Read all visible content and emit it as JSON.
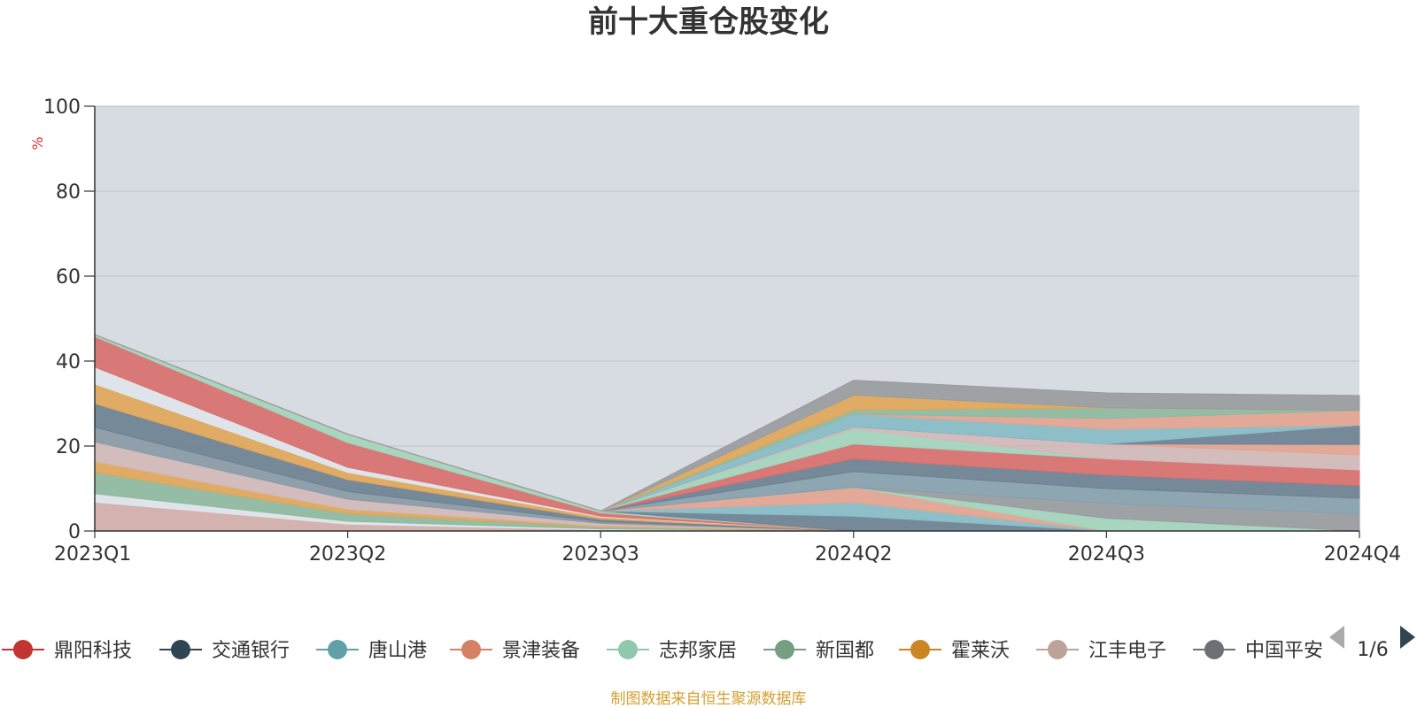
{
  "chart_data": {
    "type": "area",
    "title": "前十大重仓股变化",
    "ylabel": "%",
    "ylim": [
      0,
      100
    ],
    "yticks": [
      "0",
      "20",
      "40",
      "60",
      "80",
      "100"
    ],
    "grid": true,
    "categories": [
      "2023Q1",
      "2023Q2",
      "2023Q3",
      "2024Q2",
      "2024Q3",
      "2024Q4"
    ],
    "series": [
      {
        "name": "江丰电子",
        "color": "#d2aeaa",
        "values": [
          6.8,
          1.6,
          0.3,
          0,
          0,
          0
        ]
      },
      {
        "name": "",
        "color": "#dfe4ea",
        "values": [
          2.0,
          0.7,
          0.2,
          0,
          0,
          0
        ]
      },
      {
        "name": "新国都",
        "color": "#8fb9a0",
        "values": [
          5.0,
          1.8,
          0.4,
          0,
          0,
          0
        ]
      },
      {
        "name": "霍莱沃",
        "color": "#e0a65a",
        "values": [
          2.6,
          1.0,
          0.3,
          0,
          0,
          0
        ]
      },
      {
        "name": "",
        "color": "#d2b9b9",
        "values": [
          4.6,
          2.4,
          0.6,
          0,
          0,
          0
        ]
      },
      {
        "name": "",
        "color": "#8a9aa6",
        "values": [
          3.4,
          1.8,
          0.4,
          0,
          0,
          0
        ]
      },
      {
        "name": "",
        "color": "#6e8192",
        "values": [
          5.6,
          2.8,
          0.6,
          0,
          0,
          0
        ]
      },
      {
        "name": "",
        "color": "#e0a65a",
        "values": [
          4.6,
          1.7,
          0.5,
          0,
          0,
          0
        ]
      },
      {
        "name": "",
        "color": "#dfe4ea",
        "values": [
          4.0,
          1.2,
          0.2,
          0,
          0,
          0
        ]
      },
      {
        "name": "",
        "color": "#d9706e",
        "values": [
          7.2,
          5.8,
          0.8,
          0,
          0,
          0
        ]
      },
      {
        "name": "",
        "color": "#a3d4bc",
        "values": [
          0.4,
          2.0,
          0.4,
          0,
          0,
          0
        ]
      },
      {
        "name": "交通银行",
        "color": "#6e8192",
        "values": [
          0,
          0,
          0,
          3.5,
          0,
          0
        ]
      },
      {
        "name": "唐山港",
        "color": "#88bcc7",
        "values": [
          0,
          0,
          0,
          3.2,
          0,
          0
        ]
      },
      {
        "name": "景津装备",
        "color": "#e3a491",
        "values": [
          0,
          0,
          0,
          3.6,
          0,
          0
        ]
      },
      {
        "name": "志邦家居",
        "color": "#a3d4bc",
        "values": [
          0,
          0,
          0,
          0,
          3.0,
          0
        ]
      },
      {
        "name": "",
        "color": "#9a9c9e",
        "values": [
          0,
          0,
          0,
          0,
          3.5,
          4.0
        ]
      },
      {
        "name": "",
        "color": "#88a0ae",
        "values": [
          0,
          0,
          0,
          3.7,
          3.5,
          3.7
        ]
      },
      {
        "name": "",
        "color": "#6e8192",
        "values": [
          0,
          0,
          0,
          3.0,
          3.2,
          3.0
        ]
      },
      {
        "name": "鼎阳科技",
        "color": "#d9706e",
        "values": [
          0,
          0,
          0,
          3.5,
          3.8,
          3.7
        ]
      },
      {
        "name": "",
        "color": "#a3d4bc",
        "values": [
          0,
          0,
          0,
          3.5,
          0,
          0
        ]
      },
      {
        "name": "",
        "color": "#d2b9b9",
        "values": [
          0,
          0,
          0,
          0.5,
          3.5,
          3.5
        ]
      },
      {
        "name": "",
        "color": "#e3a491",
        "values": [
          0,
          0,
          0,
          0,
          0,
          2.5
        ]
      },
      {
        "name": "",
        "color": "#6e8192",
        "values": [
          0,
          0,
          0,
          0,
          0,
          4.5
        ]
      },
      {
        "name": "",
        "color": "#88bcc7",
        "values": [
          0,
          0,
          0,
          3.0,
          3.5,
          0
        ]
      },
      {
        "name": "",
        "color": "#e3a491",
        "values": [
          0,
          0,
          0,
          0,
          2.5,
          3.5
        ]
      },
      {
        "name": "",
        "color": "#8fb9a0",
        "values": [
          0,
          0,
          0,
          1.0,
          2.5,
          0
        ]
      },
      {
        "name": "",
        "color": "#e0a65a",
        "values": [
          0,
          0,
          0,
          3.5,
          0,
          0
        ]
      },
      {
        "name": "中国平安",
        "color": "#9a9c9e",
        "values": [
          0,
          0,
          0,
          3.5,
          3.5,
          3.5
        ]
      }
    ],
    "legend_items": [
      {
        "name": "鼎阳科技",
        "color": "#c23531"
      },
      {
        "name": "交通银行",
        "color": "#2f4554"
      },
      {
        "name": "唐山港",
        "color": "#61a0a8"
      },
      {
        "name": "景津装备",
        "color": "#d48265"
      },
      {
        "name": "志邦家居",
        "color": "#91c7ae"
      },
      {
        "name": "新国都",
        "color": "#749f83"
      },
      {
        "name": "霍莱沃",
        "color": "#ca8622"
      },
      {
        "name": "江丰电子",
        "color": "#bda29a"
      },
      {
        "name": "中国平安",
        "color": "#6e7074"
      }
    ],
    "legend_page": "1/6",
    "source_note": "制图数据来自恒生聚源数据库"
  },
  "colors": {
    "plot_background": "#d7dce3",
    "grid": "#c3c9d1",
    "axis": "#333333",
    "ylabel": "#e03030",
    "source": "#d4a030",
    "pager_inactive": "#aaaaaa",
    "pager_active": "#2f4554"
  }
}
